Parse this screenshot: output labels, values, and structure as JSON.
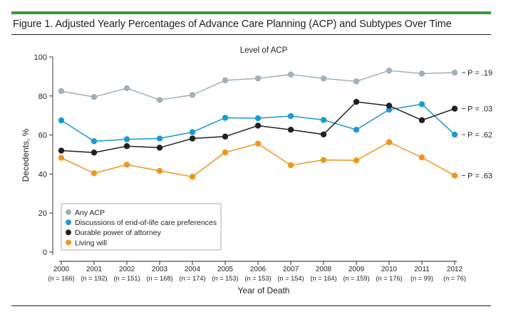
{
  "figure_title": "Figure 1. Adjusted Yearly Percentages of Advance Care Planning (ACP) and Subtypes Over Time",
  "colors": {
    "any_acp": "#9fb0b8",
    "discussions": "#1a9ad6",
    "dpoa": "#231f20",
    "living_will": "#f0961e",
    "rule": "#3a9b3a"
  },
  "chart_data": {
    "type": "line",
    "title": "Level of ACP",
    "xlabel": "Year of Death",
    "ylabel": "Decedents, %",
    "ylim": [
      0,
      100
    ],
    "yticks": [
      0,
      20,
      40,
      60,
      80,
      100
    ],
    "grid": false,
    "legend_position": "bottom-left",
    "categories": [
      "2000",
      "2001",
      "2002",
      "2003",
      "2004",
      "2005",
      "2006",
      "2007",
      "2008",
      "2009",
      "2010",
      "2011",
      "2012"
    ],
    "n_labels": [
      "(n = 166)",
      "(n = 192)",
      "(n = 151)",
      "(n = 168)",
      "(n = 174)",
      "(n = 153)",
      "(n = 153)",
      "(n = 154)",
      "(n = 164)",
      "(n = 159)",
      "(n = 176)",
      "(n = 99)",
      "(n = 76)"
    ],
    "series": [
      {
        "name": "Any ACP",
        "color_key": "any_acp",
        "p_label": "P = .19",
        "values": [
          82.5,
          79.5,
          84,
          78,
          80.5,
          88,
          89,
          91,
          89,
          87.5,
          93,
          91.5,
          92
        ]
      },
      {
        "name": "Discussions of end-of-life care preferences",
        "color_key": "discussions",
        "p_label": "P = .62",
        "values": [
          67.5,
          56.8,
          57.8,
          58.2,
          61.5,
          68.8,
          68.6,
          69.7,
          67.7,
          62.7,
          73,
          75.8,
          60.2
        ]
      },
      {
        "name": "Durable power of attorney",
        "color_key": "dpoa",
        "p_label": "P = .03",
        "values": [
          52,
          51,
          54.3,
          53.5,
          58.2,
          59.2,
          64.8,
          62.7,
          60.3,
          77,
          75,
          67.6,
          73.5
        ]
      },
      {
        "name": "Living will",
        "color_key": "living_will",
        "p_label": "P = .63",
        "values": [
          48.3,
          40.4,
          44.8,
          41.6,
          38.6,
          51.1,
          55.6,
          44.5,
          47.2,
          47,
          56.3,
          48.5,
          39.2
        ]
      }
    ]
  }
}
